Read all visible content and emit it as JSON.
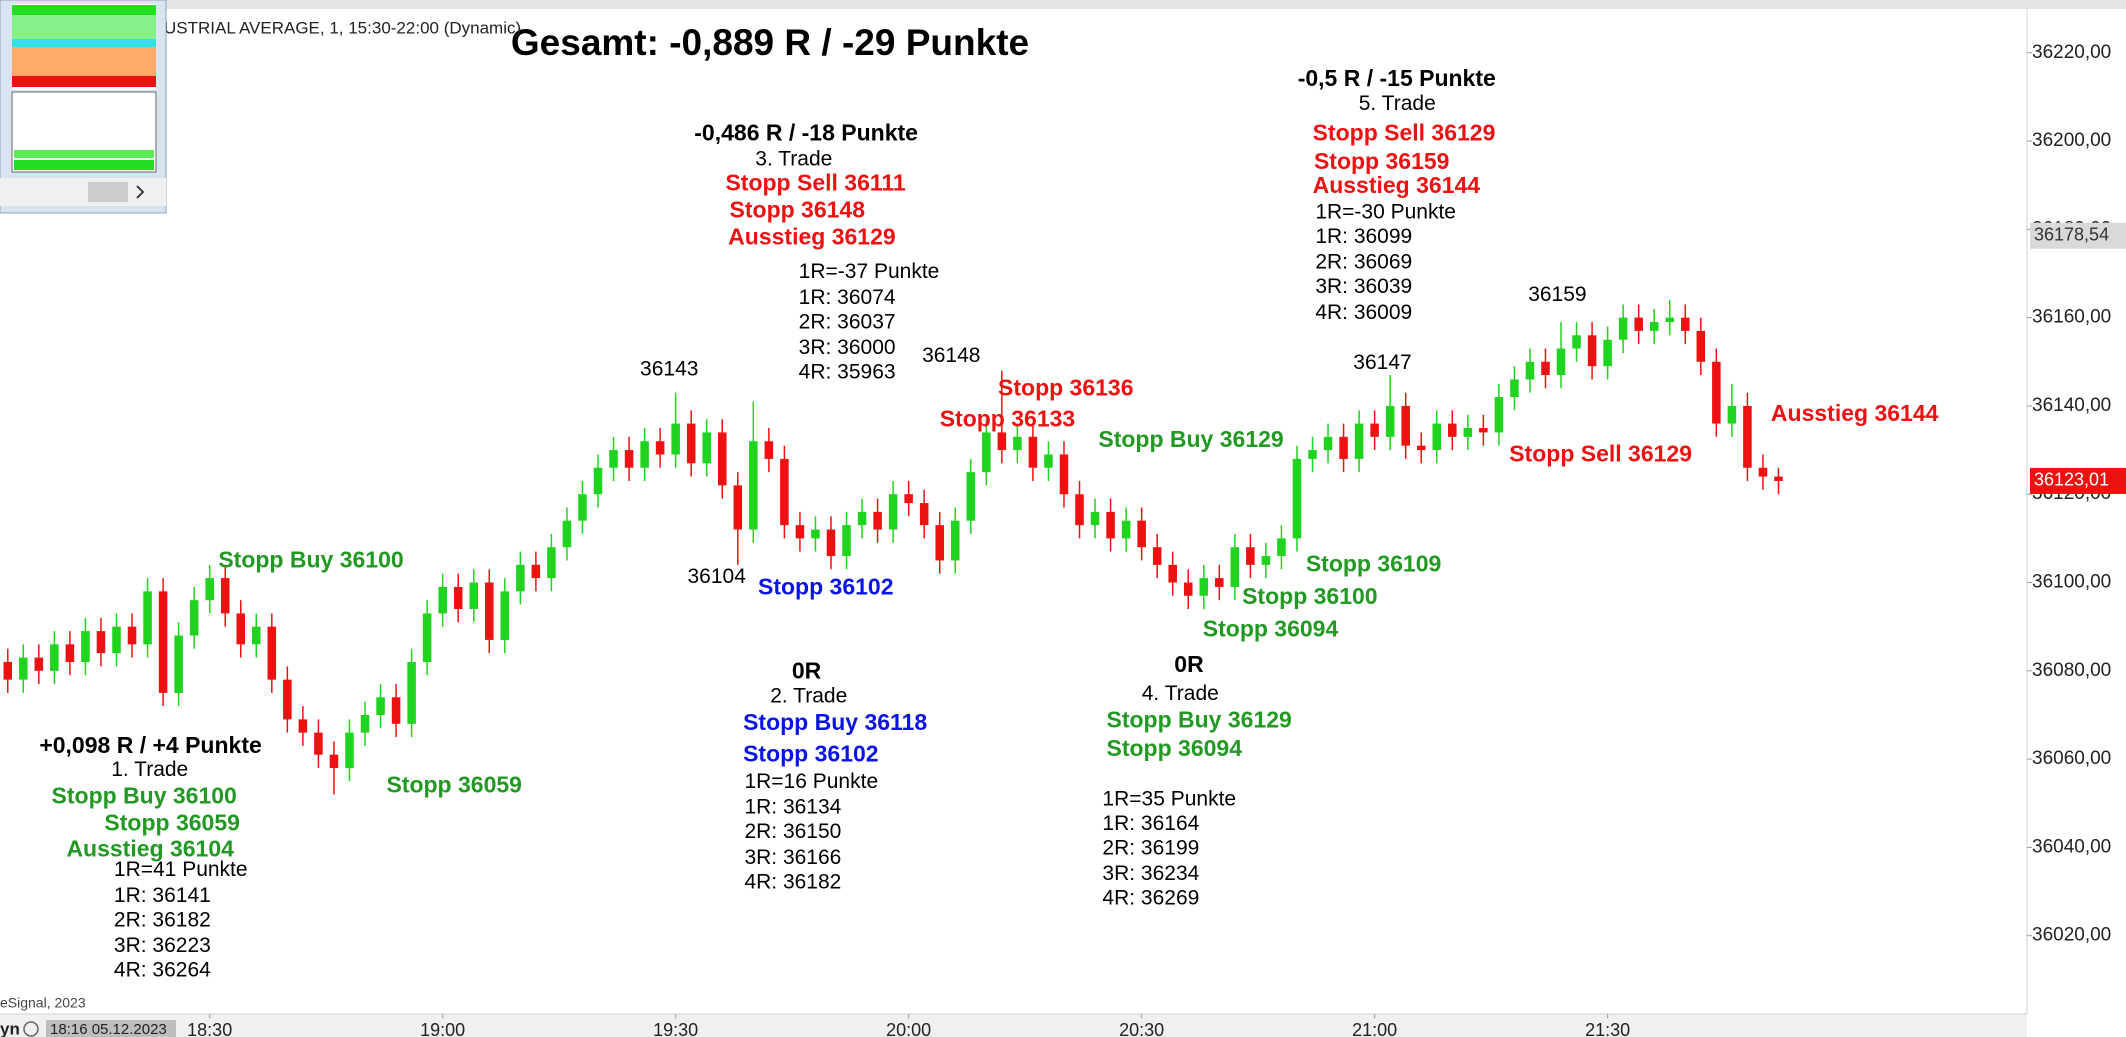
{
  "chart_data": {
    "type": "candlestick",
    "title": "Gesamt: -0,889 R / -29 Punkte",
    "subtitle": "USTRIAL AVERAGE, 1, 15:30-22:00 (Dynamic)",
    "footer": "eSignal, 2023",
    "cursor_time": "18:16 05.12.2023",
    "corner_text": "yn",
    "up_color": "#1fd31f",
    "down_color": "#ee1111",
    "xlim": [
      "18:03",
      "22:24"
    ],
    "xticks": [
      "18:30",
      "19:00",
      "19:30",
      "20:00",
      "20:30",
      "21:00",
      "21:30"
    ],
    "ylim": [
      36002.2,
      36229.5
    ],
    "yticks": [
      {
        "value": 36020,
        "label": "36020,00"
      },
      {
        "value": 36040,
        "label": "36040,00"
      },
      {
        "value": 36060,
        "label": "36060,00"
      },
      {
        "value": 36080,
        "label": "36080,00"
      },
      {
        "value": 36100,
        "label": "36100,00"
      },
      {
        "value": 36120,
        "label": "36120,00"
      },
      {
        "value": 36140,
        "label": "36140,00"
      },
      {
        "value": 36160,
        "label": "36160,00"
      },
      {
        "value": 36180,
        "label": "36180,00"
      },
      {
        "value": 36200,
        "label": "36200,00"
      },
      {
        "value": 36220,
        "label": "36220,00"
      }
    ],
    "price_markers": [
      {
        "value": 36178.54,
        "label": "36178,54",
        "color": "#d9d9d9",
        "text_color": "#333333"
      },
      {
        "value": 36123.01,
        "label": "36123,01",
        "color": "#ee1111",
        "text_color": "#ffffff"
      }
    ],
    "x": [
      "18:04",
      "18:06",
      "18:08",
      "18:10",
      "18:12",
      "18:14",
      "18:16",
      "18:18",
      "18:20",
      "18:22",
      "18:24",
      "18:26",
      "18:28",
      "18:30",
      "18:32",
      "18:34",
      "18:36",
      "18:38",
      "18:40",
      "18:42",
      "18:44",
      "18:46",
      "18:48",
      "18:50",
      "18:52",
      "18:54",
      "18:56",
      "18:58",
      "19:00",
      "19:02",
      "19:04",
      "19:06",
      "19:08",
      "19:10",
      "19:12",
      "19:14",
      "19:16",
      "19:18",
      "19:20",
      "19:22",
      "19:24",
      "19:26",
      "19:28",
      "19:30",
      "19:32",
      "19:34",
      "19:36",
      "19:38",
      "19:40",
      "19:42",
      "19:44",
      "19:46",
      "19:48",
      "19:50",
      "19:52",
      "19:54",
      "19:56",
      "19:58",
      "20:00",
      "20:02",
      "20:04",
      "20:06",
      "20:08",
      "20:10",
      "20:12",
      "20:14",
      "20:16",
      "20:18",
      "20:20",
      "20:22",
      "20:24",
      "20:26",
      "20:28",
      "20:30",
      "20:32",
      "20:34",
      "20:36",
      "20:38",
      "20:40",
      "20:42",
      "20:44",
      "20:46",
      "20:48",
      "20:50",
      "20:52",
      "20:54",
      "20:56",
      "20:58",
      "21:00",
      "21:02",
      "21:04",
      "21:06",
      "21:08",
      "21:10",
      "21:12",
      "21:14",
      "21:16",
      "21:18",
      "21:20",
      "21:22",
      "21:24",
      "21:26",
      "21:28",
      "21:30",
      "21:32",
      "21:34",
      "21:36",
      "21:38",
      "21:40",
      "21:42",
      "21:44",
      "21:46",
      "21:48",
      "21:50",
      "21:52"
    ],
    "open": [
      36082,
      36078,
      36083,
      36080,
      36086,
      36082,
      36089,
      36084,
      36090,
      36086,
      36098,
      36075,
      36088,
      36096,
      36101,
      36093,
      36086,
      36090,
      36078,
      36069,
      36066,
      36061,
      36058,
      36066,
      36070,
      36074,
      36068,
      36082,
      36093,
      36099,
      36094,
      36100,
      36087,
      36098,
      36104,
      36101,
      36108,
      36114,
      36120,
      36126,
      36130,
      36126,
      36132,
      36129,
      36136,
      36127,
      36134,
      36122,
      36112,
      36132,
      36128,
      36113,
      36110,
      36112,
      36106,
      36113,
      36116,
      36112,
      36120,
      36118,
      36113,
      36105,
      36114,
      36125,
      36134,
      36130,
      36133,
      36126,
      36129,
      36120,
      36113,
      36116,
      36110,
      36114,
      36108,
      36104,
      36100,
      36097,
      36101,
      36099,
      36108,
      36104,
      36106,
      36110,
      36128,
      36130,
      36133,
      36128,
      36136,
      36133,
      36140,
      36131,
      36130,
      36136,
      36133,
      36135,
      36134,
      36142,
      36146,
      36150,
      36147,
      36153,
      36156,
      36149,
      36155,
      36160,
      36157,
      36159,
      36160,
      36157,
      36150,
      36136,
      36140,
      36126,
      36124
    ],
    "high": [
      36085,
      36086,
      36086,
      36089,
      36089,
      36092,
      36092,
      36093,
      36093,
      36101,
      36101,
      36091,
      36099,
      36104,
      36104,
      36096,
      36093,
      36093,
      36081,
      36072,
      36069,
      36064,
      36069,
      36073,
      36077,
      36077,
      36085,
      36096,
      36102,
      36102,
      36103,
      36103,
      36101,
      36107,
      36107,
      36111,
      36117,
      36123,
      36129,
      36133,
      36133,
      36135,
      36135,
      36143,
      36139,
      36137,
      36137,
      36125,
      36141,
      36135,
      36131,
      36116,
      36115,
      36115,
      36116,
      36119,
      36119,
      36123,
      36123,
      36121,
      36116,
      36117,
      36128,
      36137,
      36148,
      36136,
      36136,
      36132,
      36132,
      36123,
      36119,
      36119,
      36117,
      36117,
      36111,
      36107,
      36103,
      36104,
      36104,
      36111,
      36111,
      36109,
      36113,
      36131,
      36133,
      36136,
      36136,
      36139,
      36139,
      36147,
      36143,
      36134,
      36139,
      36139,
      36138,
      36138,
      36145,
      36149,
      36153,
      36153,
      36159,
      36159,
      36159,
      36158,
      36163,
      36163,
      36162,
      36164,
      36163,
      36160,
      36153,
      36145,
      36143,
      36129,
      36126
    ],
    "low": [
      36075,
      36075,
      36077,
      36077,
      36079,
      36079,
      36081,
      36081,
      36083,
      36083,
      36072,
      36072,
      36085,
      36093,
      36090,
      36083,
      36083,
      36075,
      36066,
      36063,
      36058,
      36052,
      36055,
      36063,
      36067,
      36065,
      36065,
      36079,
      36090,
      36091,
      36091,
      36084,
      36084,
      36095,
      36098,
      36098,
      36105,
      36111,
      36117,
      36123,
      36123,
      36123,
      36126,
      36126,
      36124,
      36124,
      36119,
      36104,
      36109,
      36125,
      36110,
      36107,
      36107,
      36103,
      36103,
      36110,
      36109,
      36109,
      36115,
      36110,
      36102,
      36102,
      36111,
      36122,
      36127,
      36127,
      36123,
      36123,
      36117,
      36110,
      36110,
      36107,
      36107,
      36105,
      36101,
      36097,
      36094,
      36094,
      36096,
      36096,
      36101,
      36101,
      36103,
      36107,
      36125,
      36127,
      36125,
      36125,
      36130,
      36130,
      36128,
      36127,
      36127,
      36130,
      36130,
      36131,
      36131,
      36139,
      36143,
      36144,
      36144,
      36150,
      36146,
      36146,
      36152,
      36154,
      36154,
      36156,
      36154,
      36147,
      36133,
      36133,
      36123,
      36121,
      36120
    ],
    "close": [
      36078,
      36083,
      36080,
      36086,
      36082,
      36089,
      36084,
      36090,
      36086,
      36098,
      36075,
      36088,
      36096,
      36101,
      36093,
      36086,
      36090,
      36078,
      36069,
      36066,
      36061,
      36058,
      36066,
      36070,
      36074,
      36068,
      36082,
      36093,
      36099,
      36094,
      36100,
      36087,
      36098,
      36104,
      36101,
      36108,
      36114,
      36120,
      36126,
      36130,
      36126,
      36132,
      36129,
      36136,
      36127,
      36134,
      36122,
      36112,
      36132,
      36128,
      36113,
      36110,
      36112,
      36106,
      36113,
      36116,
      36112,
      36120,
      36118,
      36113,
      36105,
      36114,
      36125,
      36134,
      36130,
      36133,
      36126,
      36129,
      36120,
      36113,
      36116,
      36110,
      36114,
      36108,
      36104,
      36100,
      36097,
      36101,
      36099,
      36108,
      36104,
      36106,
      36110,
      36128,
      36130,
      36133,
      36128,
      36136,
      36133,
      36140,
      36131,
      36130,
      36136,
      36133,
      36135,
      36134,
      36142,
      36146,
      36150,
      36147,
      36153,
      36156,
      36149,
      36155,
      36160,
      36157,
      36159,
      36160,
      36157,
      36150,
      36136,
      36140,
      36126,
      36124,
      36123
    ],
    "annotations": [
      {
        "text": "-0,5 R / -15 Punkte",
        "color": "#000000",
        "bold": true
      },
      {
        "text": "5. Trade",
        "color": "#000000"
      },
      {
        "text": "Stopp Sell 36129",
        "color": "#ee1111",
        "bold": true
      },
      {
        "text": "Stopp 36159",
        "color": "#ee1111",
        "bold": true
      },
      {
        "text": "Ausstieg 36144",
        "color": "#ee1111",
        "bold": true
      },
      {
        "text": "1R=-30 Punkte",
        "color": "#000000"
      },
      {
        "text": "1R: 36099",
        "color": "#000000"
      },
      {
        "text": "2R: 36069",
        "color": "#000000"
      },
      {
        "text": "3R: 36039",
        "color": "#000000"
      },
      {
        "text": "4R: 36009",
        "color": "#000000"
      },
      {
        "text": "-0,486 R / -18 Punkte",
        "color": "#000000",
        "bold": true
      },
      {
        "text": "3. Trade",
        "color": "#000000"
      },
      {
        "text": "Stopp Sell 36111",
        "color": "#ee1111",
        "bold": true
      },
      {
        "text": "Stopp 36148",
        "color": "#ee1111",
        "bold": true
      },
      {
        "text": "Ausstieg 36129",
        "color": "#ee1111",
        "bold": true
      },
      {
        "text": "1R=-37 Punkte",
        "color": "#000000"
      },
      {
        "text": "1R: 36074",
        "color": "#000000"
      },
      {
        "text": "2R: 36037",
        "color": "#000000"
      },
      {
        "text": "3R: 36000",
        "color": "#000000"
      },
      {
        "text": "4R: 35963",
        "color": "#000000"
      },
      {
        "text": "36143",
        "color": "#000000"
      },
      {
        "text": "36148",
        "color": "#000000"
      },
      {
        "text": "Stopp 36136",
        "color": "#ee1111",
        "bold": true
      },
      {
        "text": "Stopp 36133",
        "color": "#ee1111",
        "bold": true
      },
      {
        "text": "Stopp Buy 36129",
        "color": "#229922",
        "bold": true
      },
      {
        "text": "36147",
        "color": "#000000"
      },
      {
        "text": "36159",
        "color": "#000000"
      },
      {
        "text": "Ausstieg 36144",
        "color": "#ee1111",
        "bold": true
      },
      {
        "text": "Stopp Sell 36129",
        "color": "#ee1111",
        "bold": true
      },
      {
        "text": "Stopp Buy 36100",
        "color": "#229922",
        "bold": true
      },
      {
        "text": "36104",
        "color": "#000000"
      },
      {
        "text": "Stopp 36102",
        "color": "#0a14e6",
        "bold": true
      },
      {
        "text": "Stopp 36109",
        "color": "#229922",
        "bold": true
      },
      {
        "text": "Stopp 36100",
        "color": "#229922",
        "bold": true
      },
      {
        "text": "Stopp 36094",
        "color": "#229922",
        "bold": true
      },
      {
        "text": "Stopp 36059",
        "color": "#229922",
        "bold": true
      },
      {
        "text": "+0,098 R / +4 Punkte",
        "color": "#000000",
        "bold": true
      },
      {
        "text": "1. Trade",
        "color": "#000000"
      },
      {
        "text": "Stopp Buy 36100",
        "color": "#229922",
        "bold": true
      },
      {
        "text": "Stopp 36059",
        "color": "#229922",
        "bold": true
      },
      {
        "text": "Ausstieg 36104",
        "color": "#229922",
        "bold": true
      },
      {
        "text": "1R=41 Punkte",
        "color": "#000000"
      },
      {
        "text": "1R: 36141",
        "color": "#000000"
      },
      {
        "text": "2R: 36182",
        "color": "#000000"
      },
      {
        "text": "3R: 36223",
        "color": "#000000"
      },
      {
        "text": "4R: 36264",
        "color": "#000000"
      },
      {
        "text": "0R",
        "color": "#000000",
        "bold": true
      },
      {
        "text": "2. Trade",
        "color": "#000000"
      },
      {
        "text": "Stopp Buy 36118",
        "color": "#0a14e6",
        "bold": true
      },
      {
        "text": "Stopp 36102",
        "color": "#0a14e6",
        "bold": true
      },
      {
        "text": "1R=16 Punkte",
        "color": "#000000"
      },
      {
        "text": "1R: 36134",
        "color": "#000000"
      },
      {
        "text": "2R: 36150",
        "color": "#000000"
      },
      {
        "text": "3R: 36166",
        "color": "#000000"
      },
      {
        "text": "4R: 36182",
        "color": "#000000"
      },
      {
        "text": "0R",
        "color": "#000000",
        "bold": true
      },
      {
        "text": "4. Trade",
        "color": "#000000"
      },
      {
        "text": "Stopp Buy 36129",
        "color": "#229922",
        "bold": true
      },
      {
        "text": "Stopp 36094",
        "color": "#229922",
        "bold": true
      },
      {
        "text": "1R=35 Punkte",
        "color": "#000000"
      },
      {
        "text": "1R: 36164",
        "color": "#000000"
      },
      {
        "text": "2R: 36199",
        "color": "#000000"
      },
      {
        "text": "3R: 36234",
        "color": "#000000"
      },
      {
        "text": "4R: 36269",
        "color": "#000000"
      }
    ]
  }
}
